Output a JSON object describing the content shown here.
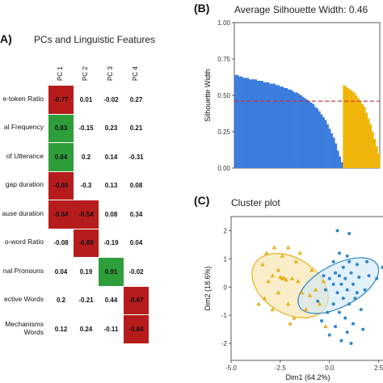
{
  "panel_a": {
    "letter": "A)",
    "title": "PCs and Linguistic Features"
  },
  "panel_b": {
    "letter": "(B)",
    "title": "Average Silhouette Width: 0.46"
  },
  "panel_c": {
    "letter": "(C)",
    "title": "Cluster plot"
  },
  "chart_data": [
    {
      "type": "table",
      "title": "PCs and Linguistic Features",
      "columns": [
        "PC 1",
        "PC 2",
        "PC 3",
        "PC 4"
      ],
      "rows": [
        {
          "label": "e-token Ratio",
          "values": [
            "-0.77",
            "0.01",
            "-0.02",
            "0.27"
          ],
          "highlight": [
            0
          ]
        },
        {
          "label": "al Frequency",
          "values": [
            "0.83",
            "-0.15",
            "0.23",
            "0.21"
          ],
          "highlight": [
            0
          ]
        },
        {
          "label": "of Utterance",
          "values": [
            "0.84",
            "0.2",
            "0.14",
            "-0.31"
          ],
          "highlight": [
            0
          ]
        },
        {
          "label": "gap duration",
          "values": [
            "-0.65",
            "-0.3",
            "0.13",
            "0.08"
          ],
          "highlight": [
            0
          ]
        },
        {
          "label": "ause duration",
          "values": [
            "-0.64",
            "-0.54",
            "0.08",
            "0.34"
          ],
          "highlight": [
            0,
            1
          ]
        },
        {
          "label": "o-word Ratio",
          "values": [
            "-0.08",
            "-0.89",
            "-0.19",
            "0.04"
          ],
          "highlight": [
            1
          ]
        },
        {
          "label": "nal Pronouns",
          "values": [
            "0.04",
            "0.19",
            "0.91",
            "-0.02"
          ],
          "highlight": [
            2
          ]
        },
        {
          "label": "ective Words",
          "values": [
            "0.2",
            "-0.21",
            "0.44",
            "-0.67"
          ],
          "highlight": [
            3
          ]
        },
        {
          "label": "Mechanisms\nWords",
          "values": [
            "0.12",
            "0.24",
            "-0.11",
            "-0.84"
          ],
          "highlight": [
            3
          ]
        }
      ],
      "colors": {
        "negative": "#b71c1c",
        "positive": "#2e9e3a"
      }
    },
    {
      "type": "bar",
      "title": "Average Silhouette Width: 0.46",
      "ylabel": "Silhouette Width",
      "ylim": [
        0,
        1.0
      ],
      "yticks": [
        "0.00",
        "0.25",
        "0.50",
        "0.75",
        "1.00"
      ],
      "average_line": 0.46,
      "average_line_color": "#d62728",
      "series": [
        {
          "color": "#3b7ddd",
          "values": [
            0.64,
            0.64,
            0.63,
            0.63,
            0.62,
            0.62,
            0.62,
            0.61,
            0.61,
            0.61,
            0.61,
            0.6,
            0.6,
            0.6,
            0.59,
            0.59,
            0.59,
            0.58,
            0.58,
            0.58,
            0.57,
            0.57,
            0.56,
            0.56,
            0.55,
            0.55,
            0.54,
            0.54,
            0.53,
            0.52,
            0.52,
            0.51,
            0.5,
            0.49,
            0.48,
            0.47,
            0.46,
            0.45,
            0.44,
            0.42,
            0.41,
            0.39,
            0.37,
            0.35,
            0.33,
            0.3,
            0.27,
            0.24,
            0.21,
            0.17,
            0.12,
            0.08,
            0.04
          ]
        },
        {
          "color": "#f0b50a",
          "values": [
            0.57,
            0.56,
            0.55,
            0.54,
            0.53,
            0.52,
            0.5,
            0.48,
            0.46,
            0.44,
            0.42,
            0.38,
            0.34,
            0.3,
            0.25,
            0.2,
            0.15,
            0.1
          ]
        }
      ]
    },
    {
      "type": "scatter",
      "title": "Cluster plot",
      "xlabel": "Dim1 (64.2%)",
      "ylabel": "Dim2 (18.6%)",
      "xlim": [
        -5.0,
        2.8
      ],
      "ylim": [
        -2.6,
        2.5
      ],
      "xticks": [
        -5.0,
        -2.5,
        0.0,
        2.5
      ],
      "yticks": [
        -2,
        -1,
        0,
        1,
        2
      ],
      "series": [
        {
          "marker": "triangle",
          "color": "#e6b01d",
          "fill": "#f7e3a6",
          "ellipse": {
            "cx": -2.0,
            "cy": 0.05,
            "rx": 2.55,
            "ry": 1.55,
            "angle": -58
          },
          "points": [
            [
              -3.2,
              1.2
            ],
            [
              -2.8,
              1.4
            ],
            [
              -2.4,
              1.1
            ],
            [
              -3.4,
              0.8
            ],
            [
              -2.1,
              1.4
            ],
            [
              -1.7,
              0.9
            ],
            [
              -2.6,
              0.6
            ],
            [
              -2.9,
              0.4
            ],
            [
              -3.1,
              0.2
            ],
            [
              -2.5,
              0.35
            ],
            [
              -2.4,
              0.3
            ],
            [
              -2.3,
              0.32
            ],
            [
              -2.2,
              0.25
            ],
            [
              -1.9,
              0.3
            ],
            [
              -1.6,
              0.2
            ],
            [
              -2.6,
              -0.2
            ],
            [
              -3.3,
              -0.4
            ],
            [
              -2.9,
              -0.8
            ],
            [
              -2.1,
              -0.6
            ],
            [
              -1.4,
              -0.2
            ],
            [
              -1.2,
              -0.8
            ],
            [
              -1.8,
              -1.1
            ],
            [
              -1.5,
              1.2
            ],
            [
              -0.9,
              0.6
            ],
            [
              -1.0,
              -0.3
            ],
            [
              -0.5,
              -0.6
            ],
            [
              -0.7,
              -0.1
            ],
            [
              -0.3,
              0.2
            ],
            [
              -0.2,
              -1.4
            ],
            [
              -2.0,
              -1.3
            ],
            [
              -3.6,
              -0.6
            ]
          ]
        },
        {
          "marker": "circle",
          "color": "#2f86c9",
          "fill": "#cfe6f5",
          "ellipse": {
            "cx": 0.45,
            "cy": 0.05,
            "rx": 1.95,
            "ry": 1.65,
            "angle": 62
          },
          "points": [
            [
              0.4,
              2.0
            ],
            [
              1.0,
              1.9
            ],
            [
              0.5,
              1.2
            ],
            [
              0.9,
              1.1
            ],
            [
              0.2,
              0.9
            ],
            [
              1.4,
              0.8
            ],
            [
              0.7,
              0.7
            ],
            [
              1.1,
              0.5
            ],
            [
              0.3,
              0.5
            ],
            [
              0.8,
              0.3
            ],
            [
              1.5,
              0.35
            ],
            [
              2.0,
              0.4
            ],
            [
              0.0,
              0.3
            ],
            [
              0.6,
              0.1
            ],
            [
              1.2,
              0.1
            ],
            [
              0.9,
              -0.1
            ],
            [
              1.8,
              -0.1
            ],
            [
              0.4,
              -0.2
            ],
            [
              -0.2,
              -0.1
            ],
            [
              0.7,
              -0.4
            ],
            [
              1.3,
              -0.4
            ],
            [
              0.2,
              -0.6
            ],
            [
              1.0,
              -0.6
            ],
            [
              1.6,
              -0.8
            ],
            [
              0.5,
              -0.9
            ],
            [
              -0.1,
              -0.9
            ],
            [
              0.8,
              -1.1
            ],
            [
              1.2,
              -1.3
            ],
            [
              0.3,
              -1.4
            ],
            [
              0.9,
              -1.6
            ],
            [
              1.7,
              -1.5
            ],
            [
              0.0,
              -1.7
            ],
            [
              0.6,
              -1.9
            ],
            [
              1.1,
              -2.0
            ],
            [
              -0.4,
              -1.2
            ],
            [
              -0.6,
              -0.5
            ],
            [
              1.9,
              0.9
            ],
            [
              2.4,
              0.3
            ],
            [
              2.7,
              0.7
            ],
            [
              0.2,
              0.1
            ],
            [
              -0.3,
              0.4
            ],
            [
              1.4,
              -0.2
            ],
            [
              0.5,
              0.4
            ],
            [
              1.0,
              0.9
            ]
          ]
        }
      ]
    }
  ]
}
